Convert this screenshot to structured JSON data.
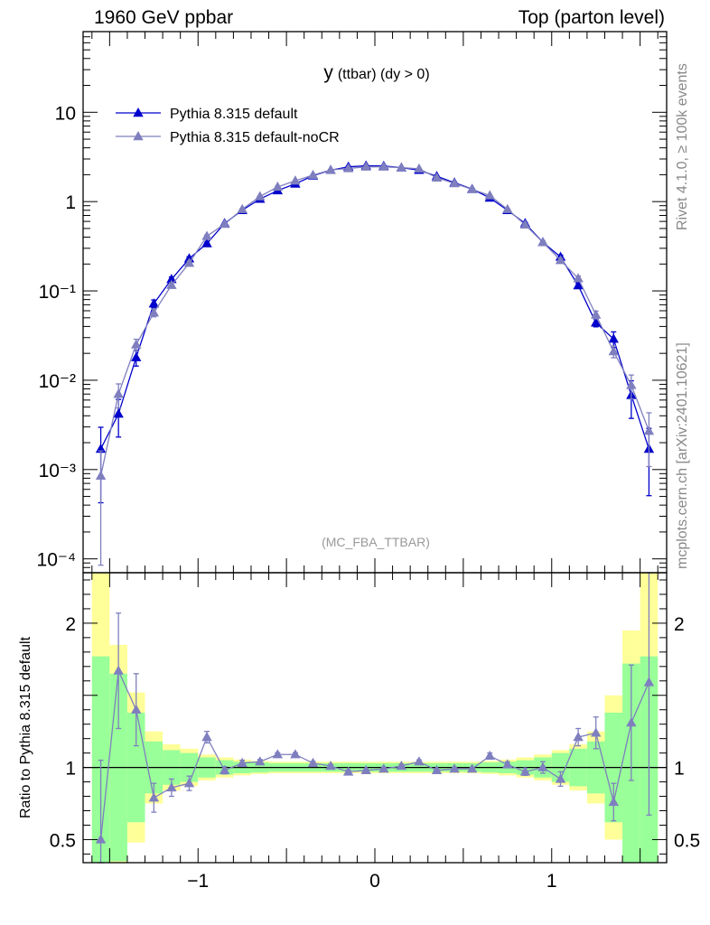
{
  "header": {
    "left": "1960 GeV ppbar",
    "right": "Top (parton level)"
  },
  "side": {
    "rivet": "Rivet 4.1.0, ≥ 100k events",
    "mcplots": "mcplots.cern.ch [arXiv:2401.10621]"
  },
  "colors": {
    "series1": "#0000cc",
    "series2": "#7f7fbf",
    "band_inner": "#99ff99",
    "band_outer": "#ffff99"
  },
  "chart_data": [
    {
      "type": "line",
      "scale": "log",
      "title": "y",
      "subtitle": "(ttbar) (dy > 0)",
      "watermark": "(MC_FBA_TTBAR)",
      "xlim": [
        -1.65,
        1.65
      ],
      "ylim": [
        7e-05,
        80
      ],
      "yticks": [
        {
          "value": 10,
          "label": "10"
        },
        {
          "value": 1,
          "label": "1"
        },
        {
          "value": 0.1,
          "label": "10⁻¹"
        },
        {
          "value": 0.01,
          "label": "10⁻²"
        },
        {
          "value": 0.001,
          "label": "10⁻³"
        },
        {
          "value": 0.0001,
          "label": "10⁻⁴"
        }
      ],
      "legend_position": "top-left",
      "x": [
        -1.55,
        -1.45,
        -1.35,
        -1.25,
        -1.15,
        -1.05,
        -0.95,
        -0.85,
        -0.75,
        -0.65,
        -0.55,
        -0.45,
        -0.35,
        -0.25,
        -0.15,
        -0.05,
        0.05,
        0.15,
        0.25,
        0.35,
        0.45,
        0.55,
        0.65,
        0.75,
        0.85,
        0.95,
        1.05,
        1.15,
        1.25,
        1.35,
        1.45,
        1.55
      ],
      "series": [
        {
          "name": "Pythia 8.315 default",
          "values": [
            0.0017,
            0.0042,
            0.018,
            0.072,
            0.135,
            0.23,
            0.34,
            0.57,
            0.8,
            1.07,
            1.33,
            1.58,
            1.95,
            2.25,
            2.45,
            2.52,
            2.5,
            2.4,
            2.25,
            1.92,
            1.63,
            1.38,
            1.1,
            0.8,
            0.57,
            0.35,
            0.24,
            0.115,
            0.044,
            0.029,
            0.0068,
            0.0017
          ],
          "errors_rel": [
            0.75,
            0.45,
            0.2,
            0.1,
            0.06,
            0.05,
            0.03,
            0.02,
            0.015,
            0.01,
            0.01,
            0.01,
            0.01,
            0.01,
            0.01,
            0.01,
            0.01,
            0.01,
            0.01,
            0.01,
            0.01,
            0.01,
            0.01,
            0.015,
            0.02,
            0.03,
            0.05,
            0.06,
            0.1,
            0.2,
            0.45,
            0.7
          ]
        },
        {
          "name": "Pythia 8.315 default-noCR",
          "values": [
            0.00085,
            0.007,
            0.025,
            0.057,
            0.116,
            0.205,
            0.41,
            0.56,
            0.82,
            1.14,
            1.46,
            1.71,
            1.98,
            2.26,
            2.35,
            2.45,
            2.45,
            2.4,
            2.33,
            1.85,
            1.6,
            1.37,
            1.17,
            0.82,
            0.55,
            0.35,
            0.22,
            0.138,
            0.054,
            0.021,
            0.0088,
            0.0027
          ],
          "errors_rel": [
            0.9,
            0.3,
            0.15,
            0.1,
            0.06,
            0.05,
            0.03,
            0.02,
            0.015,
            0.01,
            0.01,
            0.01,
            0.01,
            0.01,
            0.01,
            0.01,
            0.01,
            0.01,
            0.01,
            0.01,
            0.01,
            0.01,
            0.01,
            0.015,
            0.02,
            0.03,
            0.05,
            0.06,
            0.1,
            0.15,
            0.3,
            0.6
          ]
        }
      ]
    },
    {
      "type": "line",
      "scale": "linear",
      "ylabel": "Ratio to Pythia 8.315 default",
      "xlim": [
        -1.65,
        1.65
      ],
      "ylim": [
        0.34,
        2.35
      ],
      "xticks": [
        {
          "value": -1,
          "label": "−1"
        },
        {
          "value": 0,
          "label": "0"
        },
        {
          "value": 1,
          "label": "1"
        }
      ],
      "yticks": [
        {
          "value": 2,
          "label": "2"
        },
        {
          "value": 1,
          "label": "1"
        },
        {
          "value": 0.5,
          "label": "0.5"
        }
      ],
      "band_inner": [
        0.77,
        0.65,
        0.38,
        0.18,
        0.12,
        0.1,
        0.07,
        0.05,
        0.04,
        0.035,
        0.03,
        0.03,
        0.03,
        0.03,
        0.03,
        0.03,
        0.03,
        0.03,
        0.03,
        0.03,
        0.03,
        0.03,
        0.035,
        0.04,
        0.05,
        0.07,
        0.1,
        0.13,
        0.18,
        0.38,
        0.72,
        0.77
      ],
      "band_outer": [
        1.45,
        0.85,
        0.52,
        0.25,
        0.16,
        0.13,
        0.09,
        0.07,
        0.055,
        0.045,
        0.04,
        0.04,
        0.04,
        0.04,
        0.04,
        0.04,
        0.04,
        0.04,
        0.04,
        0.04,
        0.04,
        0.04,
        0.045,
        0.055,
        0.07,
        0.09,
        0.12,
        0.16,
        0.25,
        0.5,
        0.95,
        1.45
      ],
      "series": [
        {
          "name": "Pythia 8.315 default-noCR",
          "values": [
            0.5,
            1.67,
            1.4,
            0.79,
            0.86,
            0.89,
            1.21,
            0.98,
            1.03,
            1.04,
            1.09,
            1.09,
            1.03,
            1.01,
            0.97,
            0.98,
            0.99,
            1.01,
            1.04,
            0.98,
            0.99,
            0.99,
            1.08,
            1.02,
            0.97,
            1.0,
            0.92,
            1.21,
            1.24,
            0.76,
            1.31,
            1.59
          ],
          "errors": [
            0.55,
            0.4,
            0.25,
            0.1,
            0.06,
            0.05,
            0.04,
            0.025,
            0.02,
            0.015,
            0.012,
            0.012,
            0.012,
            0.012,
            0.012,
            0.012,
            0.012,
            0.012,
            0.012,
            0.012,
            0.012,
            0.012,
            0.02,
            0.02,
            0.025,
            0.04,
            0.05,
            0.06,
            0.11,
            0.13,
            0.4,
            0.92
          ]
        }
      ]
    }
  ]
}
